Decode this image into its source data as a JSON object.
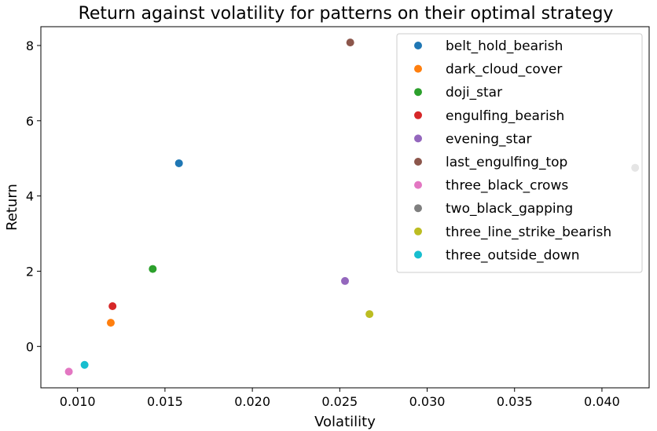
{
  "chart_data": {
    "type": "scatter",
    "title": "Return against volatility for patterns on their optimal strategy",
    "xlabel": "Volatility",
    "ylabel": "Return",
    "xlim": [
      0.0079,
      0.0427
    ],
    "ylim": [
      -1.1,
      8.5
    ],
    "xticks": [
      0.01,
      0.015,
      0.02,
      0.025,
      0.03,
      0.035,
      0.04
    ],
    "xtick_labels": [
      "0.010",
      "0.015",
      "0.020",
      "0.025",
      "0.030",
      "0.035",
      "0.040"
    ],
    "yticks": [
      0,
      2,
      4,
      6,
      8
    ],
    "ytick_labels": [
      "0",
      "2",
      "4",
      "6",
      "8"
    ],
    "grid": false,
    "legend_position": "top-right",
    "series": [
      {
        "name": "belt_hold_bearish",
        "color": "#1f77b4",
        "x": 0.0158,
        "y": 4.87
      },
      {
        "name": "dark_cloud_cover",
        "color": "#ff7f0e",
        "x": 0.0119,
        "y": 0.63
      },
      {
        "name": "doji_star",
        "color": "#2ca02c",
        "x": 0.0143,
        "y": 2.06
      },
      {
        "name": "engulfing_bearish",
        "color": "#d62728",
        "x": 0.012,
        "y": 1.07
      },
      {
        "name": "evening_star",
        "color": "#9467bd",
        "x": 0.0253,
        "y": 1.74
      },
      {
        "name": "last_engulfing_top",
        "color": "#8c564b",
        "x": 0.0256,
        "y": 8.08
      },
      {
        "name": "three_black_crows",
        "color": "#e377c2",
        "x": 0.0095,
        "y": -0.67
      },
      {
        "name": "two_black_gapping",
        "color": "#7f7f7f",
        "x": 0.0419,
        "y": 4.75
      },
      {
        "name": "three_line_strike_bearish",
        "color": "#bcbd22",
        "x": 0.0267,
        "y": 0.86
      },
      {
        "name": "three_outside_down",
        "color": "#17becf",
        "x": 0.0104,
        "y": -0.49
      }
    ]
  }
}
